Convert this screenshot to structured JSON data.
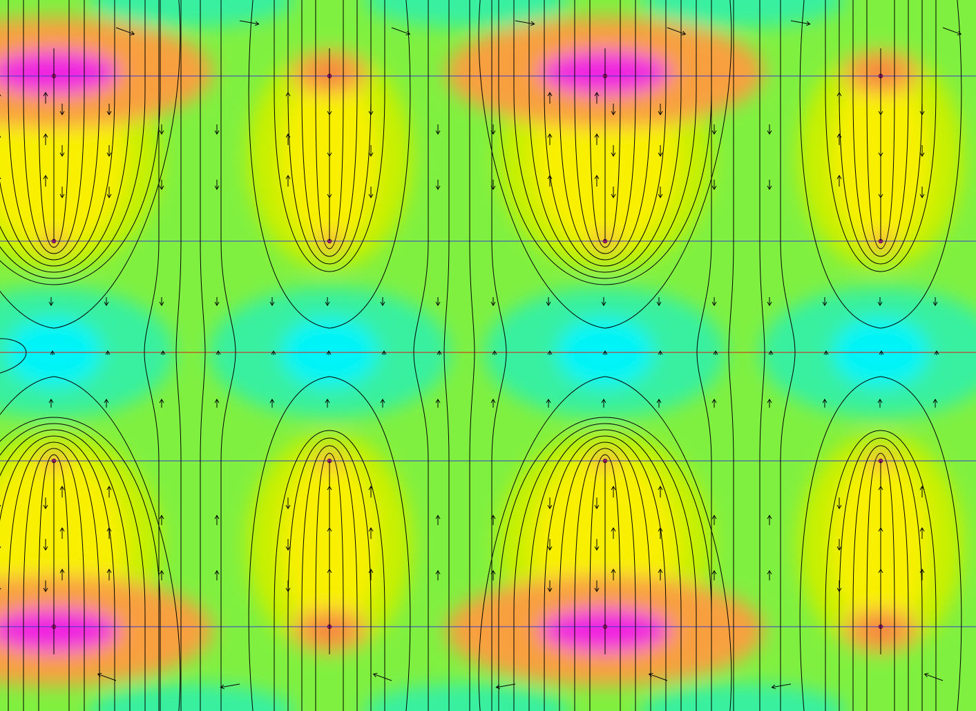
{
  "plot": {
    "kind": "magnetic field density plot with flux lines and field vectors",
    "colors": {
      "low": "#00f4f8",
      "mid_low": "#38f0a0",
      "mid": "#80f040",
      "mid_high": "#c8f000",
      "high": "#f8f000",
      "very_high": "#f8a040",
      "peak": "#f020e0",
      "flux_line": "#000000",
      "arrow": "#000000",
      "boundary": "#3a3acd",
      "symmetry_line": "#e01818"
    },
    "pole_columns": [
      {
        "id": "pole-1",
        "type": "major"
      },
      {
        "id": "pole-2",
        "type": "minor"
      },
      {
        "id": "pole-3",
        "type": "major"
      },
      {
        "id": "pole-4",
        "type": "minor"
      }
    ],
    "regions": [
      "upper-magnet-row",
      "air-gap",
      "lower-magnet-row"
    ],
    "grid_on": false,
    "legend": "none"
  }
}
